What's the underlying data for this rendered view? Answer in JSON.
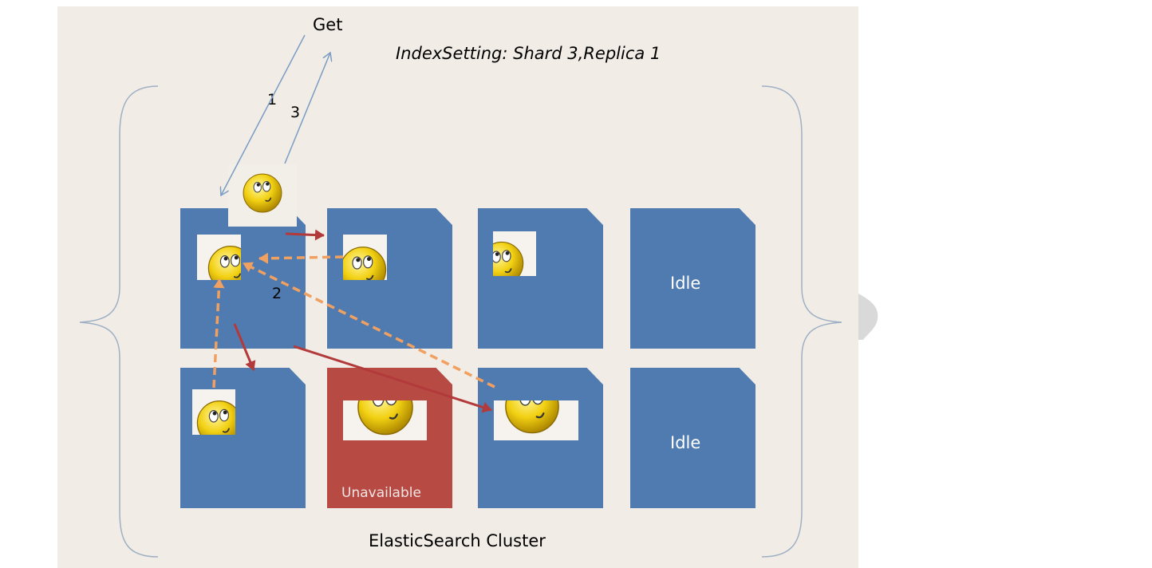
{
  "labels": {
    "get": "Get",
    "index_setting": "IndexSetting:  Shard 3,Replica 1",
    "cluster": "ElasticSearch Cluster",
    "step_1": "1",
    "step_2": "2",
    "step_3": "3"
  },
  "nodes": {
    "idle_top": "Idle",
    "idle_bottom": "Idle",
    "unavailable": "Unavailable"
  },
  "colors": {
    "slide_background": "#f1ede6",
    "node_blue": "#4f7bb0",
    "node_unavailable": "#b84a44",
    "request_arrow_red": "#b33a3a",
    "replica_arrow_orange": "#f0a060",
    "brace": "#9fb0c4"
  },
  "icons": [
    "smiley-icon"
  ]
}
